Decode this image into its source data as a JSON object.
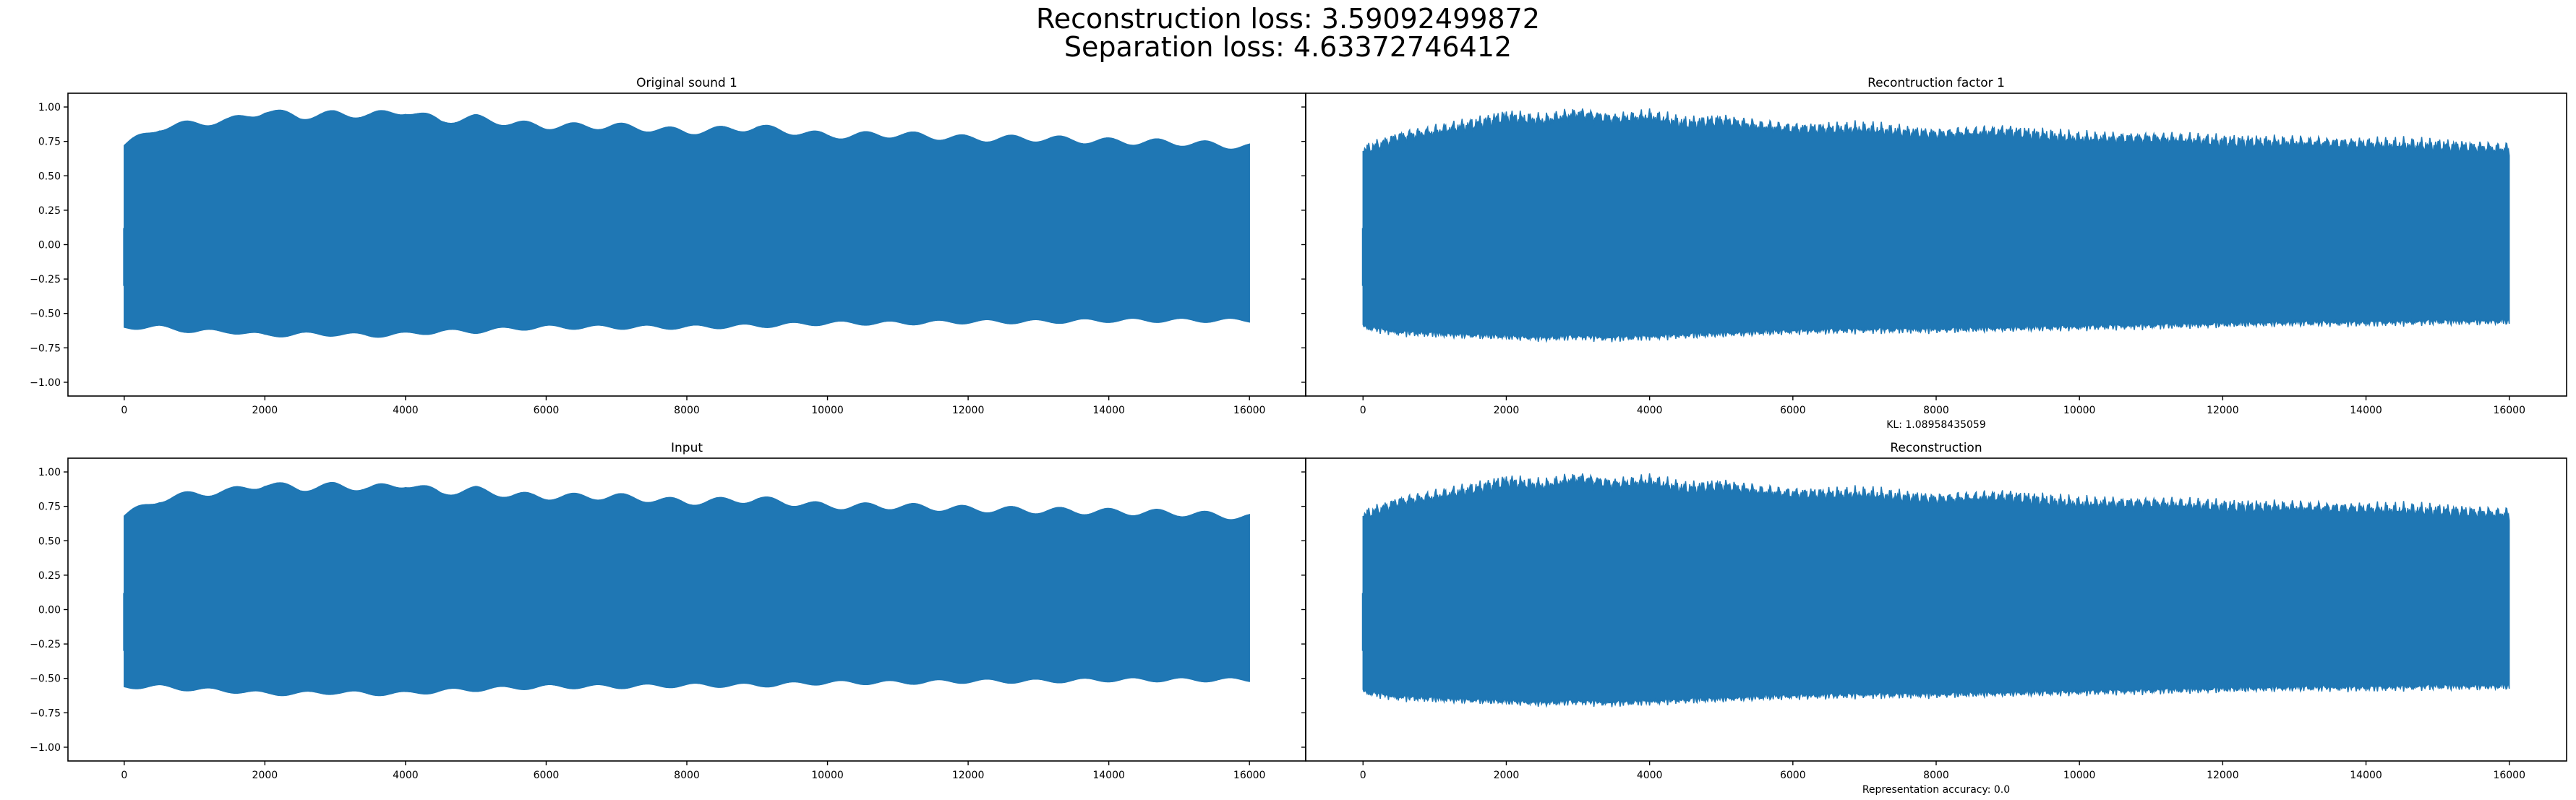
{
  "figure": {
    "suptitle_line1": "Reconstruction loss: 3.59092499872",
    "suptitle_line2": "Separation loss: 4.63372746412",
    "line_color": "#1f77b4"
  },
  "chart_data": [
    {
      "type": "area",
      "title": "Original sound 1",
      "xlabel": "",
      "ylabel": "",
      "xlim": [
        -800,
        16800
      ],
      "ylim": [
        -1.1,
        1.1
      ],
      "xticks": [
        0,
        2000,
        4000,
        6000,
        8000,
        10000,
        12000,
        14000,
        16000
      ],
      "yticks": [
        -1.0,
        -0.75,
        -0.5,
        -0.25,
        0.0,
        0.25,
        0.5,
        0.75,
        1.0
      ],
      "ytick_labels": [
        "−1.00",
        "−0.75",
        "−0.50",
        "−0.25",
        "0.00",
        "0.25",
        "0.50",
        "0.75",
        "1.00"
      ],
      "envelope": {
        "x": [
          0,
          500,
          1000,
          1500,
          2000,
          2500,
          3000,
          3500,
          4000,
          4500,
          5000,
          5500,
          6000,
          7000,
          8000,
          9000,
          10000,
          11000,
          12000,
          13000,
          14000,
          15000,
          16000
        ],
        "upper": [
          0.72,
          0.85,
          0.88,
          0.9,
          0.97,
          0.93,
          0.95,
          0.94,
          0.97,
          0.9,
          0.92,
          0.88,
          0.86,
          0.86,
          0.82,
          0.85,
          0.79,
          0.8,
          0.77,
          0.77,
          0.75,
          0.74,
          0.71
        ],
        "lower": [
          -0.6,
          -0.6,
          -0.63,
          -0.63,
          -0.66,
          -0.65,
          -0.65,
          -0.66,
          -0.65,
          -0.63,
          -0.63,
          -0.61,
          -0.6,
          -0.6,
          -0.6,
          -0.59,
          -0.57,
          -0.57,
          -0.56,
          -0.56,
          -0.55,
          -0.55,
          -0.55
        ]
      },
      "noisy": false
    },
    {
      "type": "area",
      "title": "Recontruction factor 1",
      "xlabel": "KL: 1.08958435059",
      "ylabel": "",
      "xlim": [
        -800,
        16800
      ],
      "ylim": [
        -1.1,
        1.1
      ],
      "xticks": [
        0,
        2000,
        4000,
        6000,
        8000,
        10000,
        12000,
        14000,
        16000
      ],
      "envelope": {
        "x": [
          0,
          500,
          1000,
          1500,
          2000,
          2500,
          3000,
          3500,
          4000,
          4500,
          5000,
          5500,
          6000,
          7000,
          8000,
          9000,
          10000,
          11000,
          12000,
          13000,
          14000,
          15000,
          16000
        ],
        "upper": [
          0.68,
          0.78,
          0.82,
          0.87,
          0.93,
          0.9,
          0.95,
          0.91,
          0.93,
          0.88,
          0.9,
          0.86,
          0.84,
          0.84,
          0.8,
          0.82,
          0.77,
          0.77,
          0.75,
          0.74,
          0.73,
          0.72,
          0.69
        ],
        "lower": [
          -0.58,
          -0.62,
          -0.63,
          -0.64,
          -0.65,
          -0.66,
          -0.65,
          -0.66,
          -0.65,
          -0.64,
          -0.63,
          -0.62,
          -0.61,
          -0.6,
          -0.6,
          -0.59,
          -0.58,
          -0.57,
          -0.56,
          -0.55,
          -0.55,
          -0.54,
          -0.54
        ]
      },
      "noisy": true
    },
    {
      "type": "area",
      "title": "Input",
      "xlabel": "",
      "ylabel": "",
      "xlim": [
        -800,
        16800
      ],
      "ylim": [
        -1.1,
        1.1
      ],
      "xticks": [
        0,
        2000,
        4000,
        6000,
        8000,
        10000,
        12000,
        14000,
        16000
      ],
      "yticks": [
        -1.0,
        -0.75,
        -0.5,
        -0.25,
        0.0,
        0.25,
        0.5,
        0.75,
        1.0
      ],
      "ytick_labels": [
        "−1.00",
        "−0.75",
        "−0.50",
        "−0.25",
        "0.00",
        "0.25",
        "0.50",
        "0.75",
        "1.00"
      ],
      "envelope": {
        "x": [
          0,
          500,
          1000,
          1500,
          2000,
          2500,
          3000,
          3500,
          4000,
          4500,
          5000,
          5500,
          6000,
          7000,
          8000,
          9000,
          10000,
          11000,
          12000,
          13000,
          14000,
          15000,
          16000
        ],
        "upper": [
          0.68,
          0.8,
          0.84,
          0.86,
          0.91,
          0.88,
          0.9,
          0.88,
          0.91,
          0.85,
          0.87,
          0.83,
          0.82,
          0.82,
          0.78,
          0.8,
          0.75,
          0.75,
          0.73,
          0.72,
          0.71,
          0.7,
          0.67
        ],
        "lower": [
          -0.56,
          -0.56,
          -0.58,
          -0.59,
          -0.61,
          -0.61,
          -0.6,
          -0.61,
          -0.61,
          -0.59,
          -0.58,
          -0.57,
          -0.56,
          -0.56,
          -0.55,
          -0.55,
          -0.53,
          -0.53,
          -0.52,
          -0.52,
          -0.51,
          -0.51,
          -0.51
        ]
      },
      "noisy": false
    },
    {
      "type": "area",
      "title": "Reconstruction",
      "xlabel": "Representation accuracy: 0.0",
      "ylabel": "",
      "xlim": [
        -800,
        16800
      ],
      "ylim": [
        -1.1,
        1.1
      ],
      "xticks": [
        0,
        2000,
        4000,
        6000,
        8000,
        10000,
        12000,
        14000,
        16000
      ],
      "envelope": {
        "x": [
          0,
          500,
          1000,
          1500,
          2000,
          2500,
          3000,
          3500,
          4000,
          4500,
          5000,
          5500,
          6000,
          7000,
          8000,
          9000,
          10000,
          11000,
          12000,
          13000,
          14000,
          15000,
          16000
        ],
        "upper": [
          0.68,
          0.78,
          0.82,
          0.87,
          0.93,
          0.9,
          0.95,
          0.91,
          0.93,
          0.88,
          0.9,
          0.86,
          0.84,
          0.84,
          0.8,
          0.82,
          0.77,
          0.77,
          0.75,
          0.74,
          0.73,
          0.72,
          0.69
        ],
        "lower": [
          -0.58,
          -0.62,
          -0.63,
          -0.64,
          -0.65,
          -0.66,
          -0.65,
          -0.66,
          -0.65,
          -0.64,
          -0.63,
          -0.62,
          -0.61,
          -0.6,
          -0.6,
          -0.59,
          -0.58,
          -0.57,
          -0.56,
          -0.55,
          -0.55,
          -0.54,
          -0.54
        ]
      },
      "noisy": true
    }
  ]
}
